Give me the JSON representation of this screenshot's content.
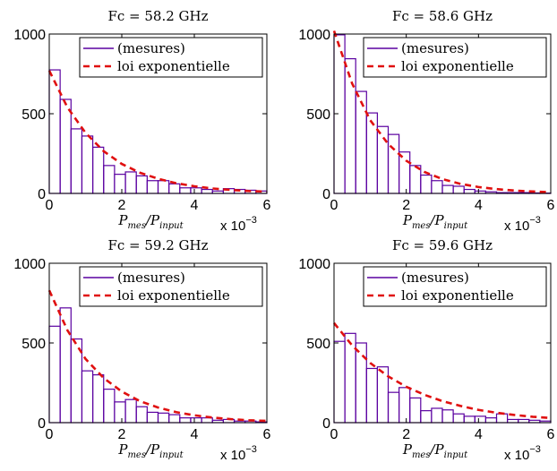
{
  "figure": {
    "colors": {
      "bars": "#5a00a0",
      "fit": "#e01010",
      "axis": "#000000",
      "background": "#ffffff"
    }
  },
  "chart_data": [
    {
      "type": "bar",
      "title": "Fc = 58.2 GHz",
      "xlabel": {
        "base": "P",
        "sub1": "mes",
        "slash": "/",
        "sub2": "input"
      },
      "x_multiplier": {
        "base": "x 10",
        "exp": "−3"
      },
      "xlim": [
        0,
        6
      ],
      "ylim": [
        0,
        1000
      ],
      "xticks": [
        "0",
        "2",
        "4",
        "6"
      ],
      "yticks": [
        "0",
        "500",
        "1000"
      ],
      "bin_width": 0.3,
      "series": [
        {
          "name": "(mesures)",
          "style": "histogram",
          "bin_starts": [
            0,
            0.3,
            0.6,
            0.9,
            1.2,
            1.5,
            1.8,
            2.1,
            2.4,
            2.7,
            3.0,
            3.3,
            3.6,
            3.9,
            4.2,
            4.5,
            4.8,
            5.1,
            5.4,
            5.7
          ],
          "values": [
            775,
            590,
            405,
            360,
            290,
            175,
            120,
            135,
            110,
            80,
            80,
            60,
            35,
            35,
            25,
            15,
            30,
            25,
            20,
            15
          ]
        },
        {
          "name": "loi exponentielle",
          "style": "dashed-line",
          "x": [
            0,
            0.5,
            1,
            1.5,
            2,
            2.5,
            3,
            3.5,
            4,
            4.5,
            5,
            5.5,
            6
          ],
          "y": [
            770,
            540,
            380,
            265,
            185,
            130,
            92,
            64,
            45,
            31,
            22,
            15,
            11
          ]
        }
      ],
      "legend": "top-right"
    },
    {
      "type": "bar",
      "title": "Fc = 58.6 GHz",
      "xlabel": {
        "base": "P",
        "sub1": "mes",
        "slash": "/",
        "sub2": "input"
      },
      "x_multiplier": {
        "base": "x 10",
        "exp": "−3"
      },
      "xlim": [
        0,
        6
      ],
      "ylim": [
        0,
        1000
      ],
      "xticks": [
        "0",
        "2",
        "4",
        "6"
      ],
      "yticks": [
        "0",
        "500",
        "1000"
      ],
      "bin_width": 0.3,
      "series": [
        {
          "name": "(mesures)",
          "style": "histogram",
          "bin_starts": [
            0,
            0.3,
            0.6,
            0.9,
            1.2,
            1.5,
            1.8,
            2.1,
            2.4,
            2.7,
            3.0,
            3.3,
            3.6,
            3.9,
            4.2,
            4.5,
            4.8,
            5.1,
            5.4,
            5.7
          ],
          "values": [
            995,
            845,
            640,
            505,
            420,
            370,
            260,
            175,
            115,
            80,
            50,
            45,
            25,
            15,
            10,
            5,
            5,
            5,
            3,
            2
          ]
        },
        {
          "name": "loi exponentielle",
          "style": "dashed-line",
          "x": [
            0,
            0.5,
            1,
            1.5,
            2,
            2.5,
            3,
            3.5,
            4,
            4.5,
            5,
            5.5,
            6
          ],
          "y": [
            1020,
            690,
            460,
            310,
            205,
            135,
            90,
            60,
            40,
            27,
            18,
            12,
            8
          ]
        }
      ],
      "legend": "top-right"
    },
    {
      "type": "bar",
      "title": "Fc = 59.2 GHz",
      "xlabel": {
        "base": "P",
        "sub1": "mes",
        "slash": "/",
        "sub2": "input"
      },
      "x_multiplier": {
        "base": "x 10",
        "exp": "−3"
      },
      "xlim": [
        0,
        6
      ],
      "ylim": [
        0,
        1000
      ],
      "xticks": [
        "0",
        "2",
        "4",
        "6"
      ],
      "yticks": [
        "0",
        "500",
        "1000"
      ],
      "bin_width": 0.3,
      "series": [
        {
          "name": "(mesures)",
          "style": "histogram",
          "bin_starts": [
            0,
            0.3,
            0.6,
            0.9,
            1.2,
            1.5,
            1.8,
            2.1,
            2.4,
            2.7,
            3.0,
            3.3,
            3.6,
            3.9,
            4.2,
            4.5,
            4.8,
            5.1,
            5.4,
            5.7
          ],
          "values": [
            605,
            720,
            525,
            325,
            300,
            210,
            130,
            145,
            100,
            65,
            60,
            50,
            30,
            30,
            30,
            15,
            20,
            10,
            10,
            5
          ]
        },
        {
          "name": "loi exponentielle",
          "style": "dashed-line",
          "x": [
            0,
            0.5,
            1,
            1.5,
            2,
            2.5,
            3,
            3.5,
            4,
            4.5,
            5,
            5.5,
            6
          ],
          "y": [
            830,
            580,
            400,
            280,
            195,
            135,
            95,
            66,
            46,
            32,
            22,
            15,
            11
          ]
        }
      ],
      "legend": "top-right"
    },
    {
      "type": "bar",
      "title": "Fc = 59.6 GHz",
      "xlabel": {
        "base": "P",
        "sub1": "mes",
        "slash": "/",
        "sub2": "input"
      },
      "x_multiplier": {
        "base": "x 10",
        "exp": "−3"
      },
      "xlim": [
        0,
        6
      ],
      "ylim": [
        0,
        1000
      ],
      "xticks": [
        "0",
        "2",
        "4",
        "6"
      ],
      "yticks": [
        "0",
        "500",
        "1000"
      ],
      "bin_width": 0.3,
      "series": [
        {
          "name": "(mesures)",
          "style": "histogram",
          "bin_starts": [
            0,
            0.3,
            0.6,
            0.9,
            1.2,
            1.5,
            1.8,
            2.1,
            2.4,
            2.7,
            3.0,
            3.3,
            3.6,
            3.9,
            4.2,
            4.5,
            4.8,
            5.1,
            5.4,
            5.7
          ],
          "values": [
            510,
            560,
            500,
            340,
            350,
            190,
            220,
            155,
            75,
            90,
            80,
            55,
            40,
            40,
            30,
            55,
            20,
            20,
            15,
            10
          ]
        },
        {
          "name": "loi exponentielle",
          "style": "dashed-line",
          "x": [
            0,
            0.5,
            1,
            1.5,
            2,
            2.5,
            3,
            3.5,
            4,
            4.5,
            5,
            5.5,
            6
          ],
          "y": [
            625,
            485,
            375,
            290,
            225,
            175,
            135,
            105,
            80,
            62,
            48,
            37,
            29
          ]
        }
      ],
      "legend": "top-right"
    }
  ]
}
